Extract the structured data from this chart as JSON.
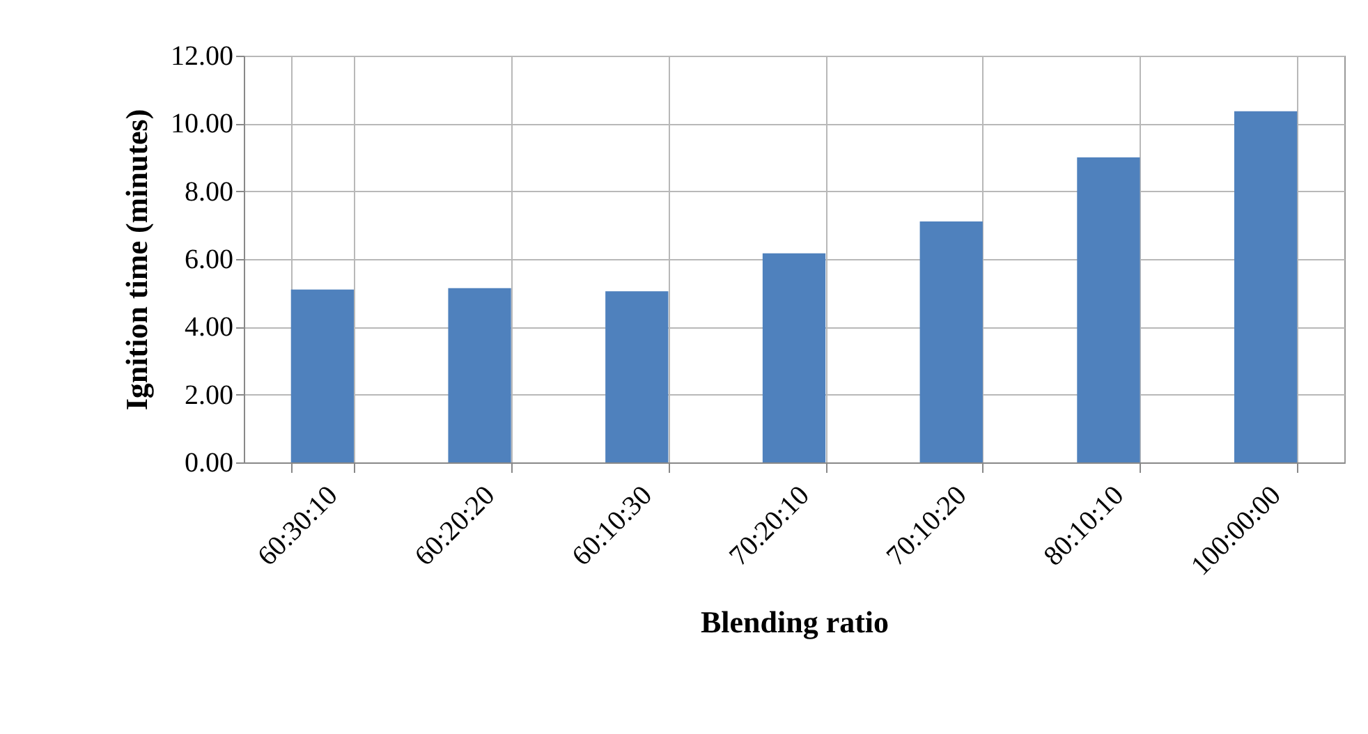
{
  "chart_data": {
    "type": "bar",
    "xlabel": "Blending ratio",
    "ylabel": "Ignition time (minutes)",
    "categories": [
      "60:30:10",
      "60:20:20",
      "60:10:30",
      "70:20:10",
      "70:10:20",
      "80:10:10",
      "100:00:00"
    ],
    "values": [
      5.1,
      5.14,
      5.05,
      6.17,
      7.11,
      9.0,
      10.36
    ],
    "color": "#4f81bd",
    "ylim": [
      0,
      12
    ],
    "yticks": [
      {
        "value": 0,
        "label": "0.00"
      },
      {
        "value": 2,
        "label": "2.00"
      },
      {
        "value": 4,
        "label": "4.00"
      },
      {
        "value": 6,
        "label": "6.00"
      },
      {
        "value": 8,
        "label": "8.00"
      },
      {
        "value": 10,
        "label": "10.00"
      },
      {
        "value": 12,
        "label": "12.00"
      }
    ],
    "grid": true
  }
}
